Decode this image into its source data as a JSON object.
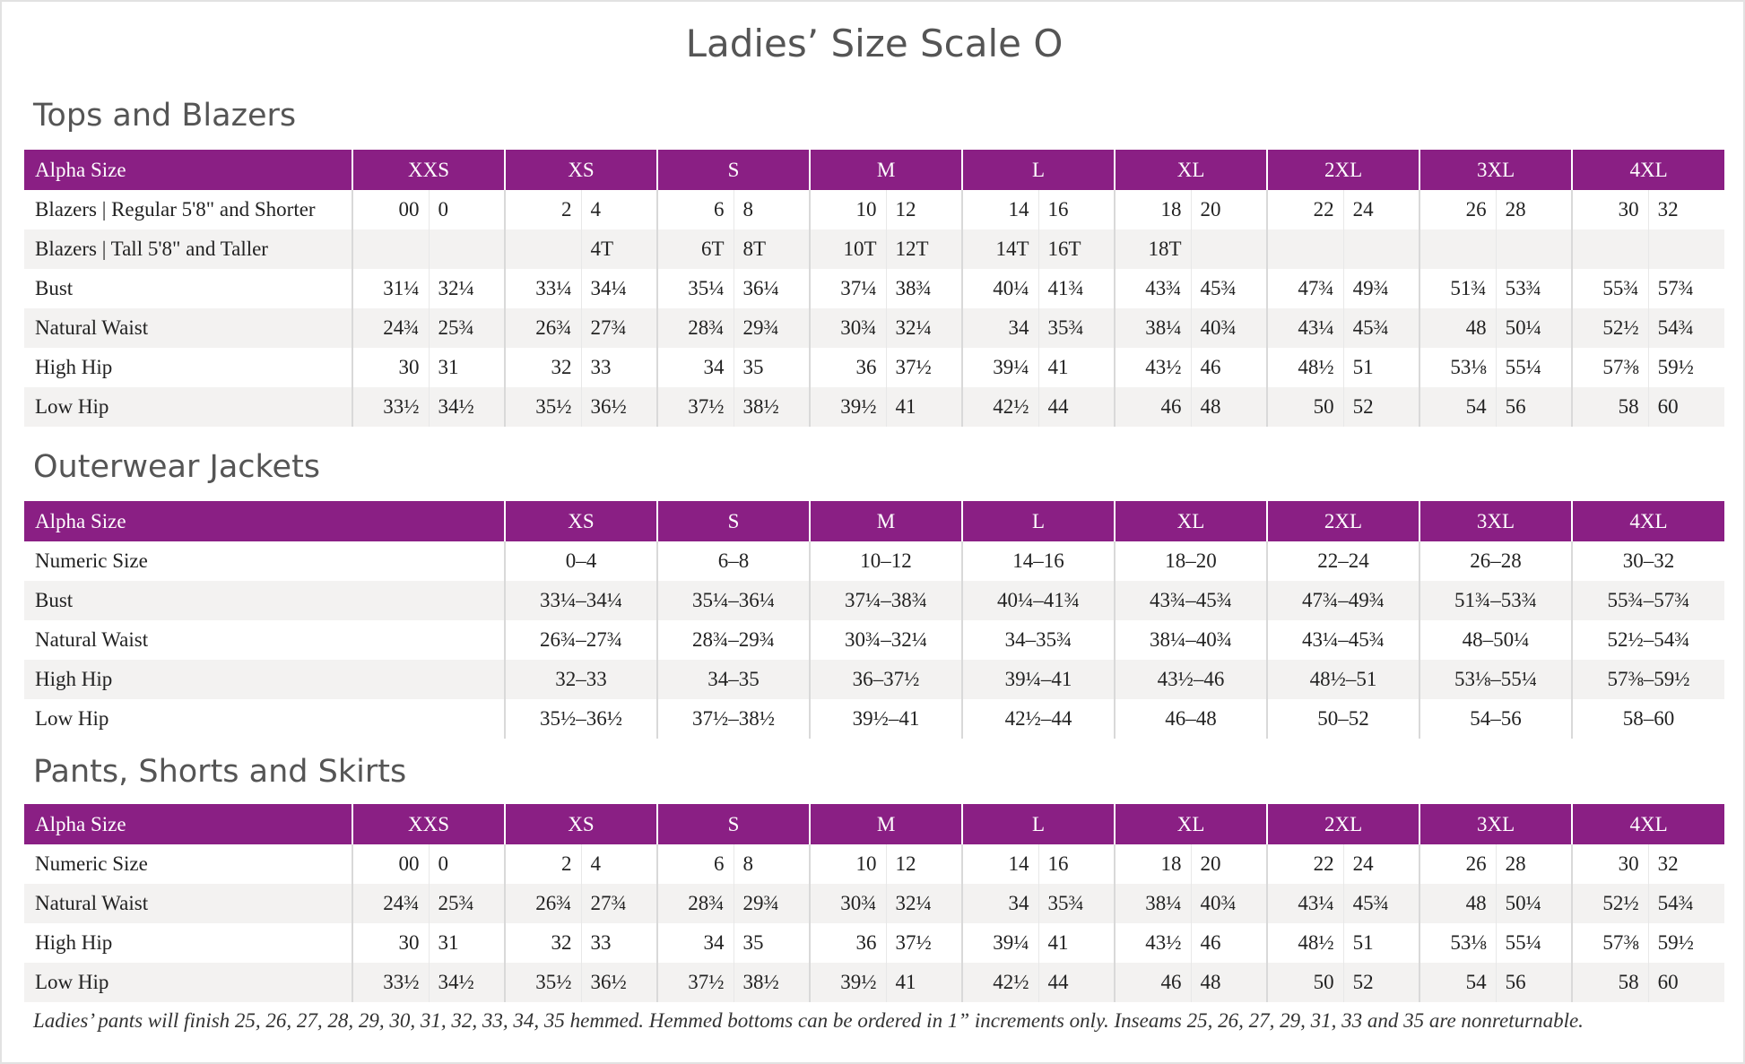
{
  "title": "Ladies’ Size Scale O",
  "sections": [
    {
      "title": "Tops and Blazers",
      "table": {
        "header": [
          "Alpha Size",
          "XXS",
          "XS",
          "S",
          "M",
          "L",
          "XL",
          "2XL",
          "3XL",
          "4XL"
        ],
        "rows": [
          {
            "label": "Blazers | Regular 5'8\" and Shorter",
            "cells": [
              "00",
              "0",
              "2",
              "4",
              "6",
              "8",
              "10",
              "12",
              "14",
              "16",
              "18",
              "20",
              "22",
              "24",
              "26",
              "28",
              "30",
              "32"
            ]
          },
          {
            "label": "Blazers | Tall 5'8\" and Taller",
            "cells": [
              null,
              null,
              null,
              "4T",
              "6T",
              "8T",
              "10T",
              "12T",
              "14T",
              "16T",
              "18T",
              null,
              null,
              null,
              null,
              null,
              null,
              null
            ]
          },
          {
            "label": "Bust",
            "cells": [
              "31¼",
              "32¼",
              "33¼",
              "34¼",
              "35¼",
              "36¼",
              "37¼",
              "38¾",
              "40¼",
              "41¾",
              "43¾",
              "45¾",
              "47¾",
              "49¾",
              "51¾",
              "53¾",
              "55¾",
              "57¾"
            ]
          },
          {
            "label": "Natural Waist",
            "cells": [
              "24¾",
              "25¾",
              "26¾",
              "27¾",
              "28¾",
              "29¾",
              "30¾",
              "32¼",
              "34",
              "35¾",
              "38¼",
              "40¾",
              "43¼",
              "45¾",
              "48",
              "50¼",
              "52½",
              "54¾"
            ]
          },
          {
            "label": "High Hip",
            "cells": [
              "30",
              "31",
              "32",
              "33",
              "34",
              "35",
              "36",
              "37½",
              "39¼",
              "41",
              "43½",
              "46",
              "48½",
              "51",
              "53⅛",
              "55¼",
              "57⅜",
              "59½"
            ]
          },
          {
            "label": "Low Hip",
            "cells": [
              "33½",
              "34½",
              "35½",
              "36½",
              "37½",
              "38½",
              "39½",
              "41",
              "42½",
              "44",
              "46",
              "48",
              "50",
              "52",
              "54",
              "56",
              "58",
              "60"
            ]
          }
        ]
      }
    },
    {
      "title": "Outerwear Jackets",
      "table": {
        "header": [
          "Alpha Size",
          "XS",
          "S",
          "M",
          "L",
          "XL",
          "2XL",
          "3XL",
          "4XL"
        ],
        "rows": [
          {
            "label": "Numeric Size",
            "cells": [
              "0–4",
              "6–8",
              "10–12",
              "14–16",
              "18–20",
              "22–24",
              "26–28",
              "30–32"
            ]
          },
          {
            "label": "Bust",
            "cells": [
              "33¼–34¼",
              "35¼–36¼",
              "37¼–38¾",
              "40¼–41¾",
              "43¾–45¾",
              "47¾–49¾",
              "51¾–53¾",
              "55¾–57¾"
            ]
          },
          {
            "label": "Natural Waist",
            "cells": [
              "26¾–27¾",
              "28¾–29¾",
              "30¾–32¼",
              "34–35¾",
              "38¼–40¾",
              "43¼–45¾",
              "48–50¼",
              "52½–54¾"
            ]
          },
          {
            "label": "High Hip",
            "cells": [
              "32–33",
              "34–35",
              "36–37½",
              "39¼–41",
              "43½–46",
              "48½–51",
              "53⅛–55¼",
              "57⅜–59½"
            ]
          },
          {
            "label": "Low Hip",
            "cells": [
              "35½–36½",
              "37½–38½",
              "39½–41",
              "42½–44",
              "46–48",
              "50–52",
              "54–56",
              "58–60"
            ]
          }
        ]
      }
    },
    {
      "title": "Pants, Shorts and Skirts",
      "table": {
        "header": [
          "Alpha Size",
          "XXS",
          "XS",
          "S",
          "M",
          "L",
          "XL",
          "2XL",
          "3XL",
          "4XL"
        ],
        "rows": [
          {
            "label": "Numeric Size",
            "cells": [
              "00",
              "0",
              "2",
              "4",
              "6",
              "8",
              "10",
              "12",
              "14",
              "16",
              "18",
              "20",
              "22",
              "24",
              "26",
              "28",
              "30",
              "32"
            ]
          },
          {
            "label": "Natural Waist",
            "cells": [
              "24¾",
              "25¾",
              "26¾",
              "27¾",
              "28¾",
              "29¾",
              "30¾",
              "32¼",
              "34",
              "35¾",
              "38¼",
              "40¾",
              "43¼",
              "45¾",
              "48",
              "50¼",
              "52½",
              "54¾"
            ]
          },
          {
            "label": "High Hip",
            "cells": [
              "30",
              "31",
              "32",
              "33",
              "34",
              "35",
              "36",
              "37½",
              "39¼",
              "41",
              "43½",
              "46",
              "48½",
              "51",
              "53⅛",
              "55¼",
              "57⅜",
              "59½"
            ]
          },
          {
            "label": "Low Hip",
            "cells": [
              "33½",
              "34½",
              "35½",
              "36½",
              "37½",
              "38½",
              "39½",
              "41",
              "42½",
              "44",
              "46",
              "48",
              "50",
              "52",
              "54",
              "56",
              "58",
              "60"
            ]
          }
        ]
      }
    }
  ],
  "footnote": "Ladies’ pants will finish 25, 26, 27, 28, 29, 30, 31, 32, 33, 34, 35 hemmed. Hemmed bottoms can be ordered in 1” increments only. Inseams 25, 26, 27, 29, 31, 33 and 35 are nonreturnable."
}
